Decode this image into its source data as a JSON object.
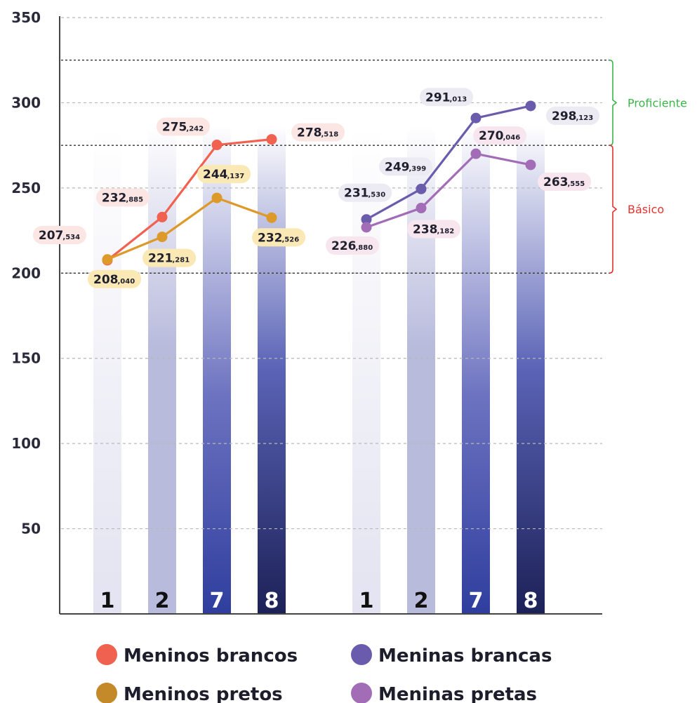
{
  "chart_data": {
    "type": "line",
    "ylim": [
      0,
      350
    ],
    "yticks": [
      50,
      100,
      150,
      200,
      250,
      300,
      350
    ],
    "grid": true,
    "categories": [
      "1",
      "2",
      "7",
      "8"
    ],
    "groups": [
      {
        "series": [
          {
            "name": "Meninos brancos",
            "color": "#f0614f",
            "values": [
              207.534,
              232.885,
              275.242,
              278.518
            ],
            "labels": [
              [
                "207",
                ",534"
              ],
              [
                "232",
                ",885"
              ],
              [
                "275",
                ",242"
              ],
              [
                "278",
                ",518"
              ]
            ],
            "label_bg": "#fce6e4"
          },
          {
            "name": "Meninos pretos",
            "color": "#dd9a2a",
            "values": [
              208.04,
              221.281,
              244.137,
              232.526
            ],
            "labels": [
              [
                "208",
                ",040"
              ],
              [
                "221",
                ",281"
              ],
              [
                "244",
                ",137"
              ],
              [
                "232",
                ",526"
              ]
            ],
            "label_bg": "#fbe9b5"
          }
        ]
      },
      {
        "series": [
          {
            "name": "Meninas brancas",
            "color": "#6b5bad",
            "values": [
              231.53,
              249.399,
              291.013,
              298.123
            ],
            "labels": [
              [
                "231",
                ",530"
              ],
              [
                "249",
                ",399"
              ],
              [
                "291",
                ",013"
              ],
              [
                "298",
                ",123"
              ]
            ],
            "label_bg": "#ecebf4"
          },
          {
            "name": "Meninas pretas",
            "color": "#a26cb6",
            "values": [
              226.88,
              238.182,
              270.046,
              263.555
            ],
            "labels": [
              [
                "226",
                ",880"
              ],
              [
                "238",
                ",182"
              ],
              [
                "270",
                ",046"
              ],
              [
                "263",
                ",555"
              ]
            ],
            "label_bg": "#f8e6ee"
          }
        ]
      }
    ],
    "bands": [
      {
        "name": "Proficiente",
        "from": 275,
        "to": 325,
        "color": "#3cb54a"
      },
      {
        "name": "Básico",
        "from": 200,
        "to": 275,
        "color": "#e3312d"
      }
    ],
    "legend": [
      {
        "name": "Meninos brancos",
        "color": "#f0614f"
      },
      {
        "name": "Meninas brancas",
        "color": "#6b5bad"
      },
      {
        "name": "Meninos pretos",
        "color": "#c48a2a"
      },
      {
        "name": "Meninas pretas",
        "color": "#a26cb6"
      }
    ]
  }
}
